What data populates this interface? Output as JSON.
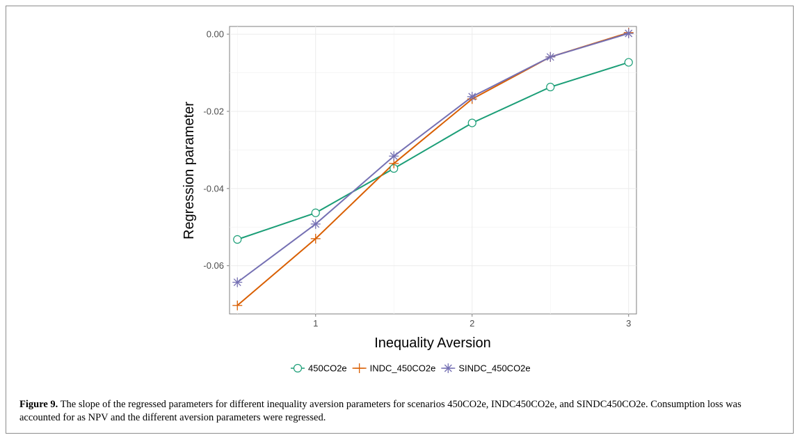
{
  "caption": {
    "label": "Figure 9.",
    "text": "The slope of the regressed parameters for different inequality aversion parameters for scenarios 450CO2e, INDC450CO2e, and SINDC450CO2e. Consumption loss was accounted for as NPV and the different aversion parameters were regressed."
  },
  "chart_data": {
    "type": "line",
    "title": "",
    "xlabel": "Inequality Aversion",
    "ylabel": "Regression parameter",
    "xlim": [
      0.45,
      3.05
    ],
    "ylim": [
      -0.0725,
      0.002
    ],
    "x_ticks": [
      1,
      2,
      3
    ],
    "x_tick_labels": [
      "1",
      "2",
      "3"
    ],
    "y_ticks": [
      0,
      -0.02,
      -0.04,
      -0.06
    ],
    "y_tick_labels": [
      "0.00",
      "-0.02",
      "-0.04",
      "-0.06"
    ],
    "grid": true,
    "legend_position": "bottom",
    "x": [
      0.5,
      1,
      1.5,
      2,
      2.5,
      3
    ],
    "series": [
      {
        "name": "450CO2e",
        "color": "#1b9e77",
        "marker": "open-circle",
        "values": [
          -0.0532,
          -0.0463,
          -0.0348,
          -0.023,
          -0.0137,
          -0.0073
        ]
      },
      {
        "name": "INDC_450CO2e",
        "color": "#d95f02",
        "marker": "plus",
        "values": [
          -0.0703,
          -0.053,
          -0.0335,
          -0.0168,
          -0.0059,
          0.0004
        ]
      },
      {
        "name": "SINDC_450CO2e",
        "color": "#7570b3",
        "marker": "asterisk",
        "values": [
          -0.0643,
          -0.0492,
          -0.0316,
          -0.0162,
          -0.0059,
          0.0002
        ]
      }
    ]
  }
}
